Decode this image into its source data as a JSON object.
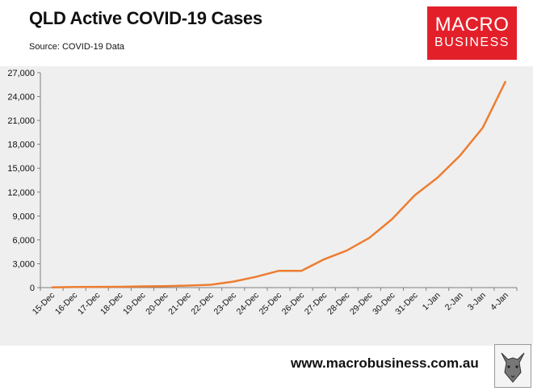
{
  "title": "QLD Active COVID-19 Cases",
  "subtitle": "Source: COVID-19 Data",
  "logo": {
    "line1": "MACRO",
    "line2": "BUSINESS",
    "color": "#e3202a"
  },
  "footer": {
    "url": "www.macrobusiness.com.au",
    "logo_icon": "wolf-icon"
  },
  "colors": {
    "series": "#ed7d31",
    "plot_bg": "#efefef"
  },
  "chart_data": {
    "type": "line",
    "title": "QLD Active COVID-19 Cases",
    "ylim": [
      0,
      27000
    ],
    "y_ticks": [
      0,
      3000,
      6000,
      9000,
      12000,
      15000,
      18000,
      21000,
      24000,
      27000
    ],
    "y_tick_labels": [
      "0",
      "3,000",
      "6,000",
      "9,000",
      "12,000",
      "15,000",
      "18,000",
      "21,000",
      "24,000",
      "27,000"
    ],
    "grid": false,
    "categories": [
      "15-Dec",
      "16-Dec",
      "17-Dec",
      "18-Dec",
      "19-Dec",
      "20-Dec",
      "21-Dec",
      "22-Dec",
      "23-Dec",
      "24-Dec",
      "25-Dec",
      "26-Dec",
      "27-Dec",
      "28-Dec",
      "29-Dec",
      "30-Dec",
      "31-Dec",
      "1-Jan",
      "2-Jan",
      "3-Jan",
      "4-Jan"
    ],
    "series": [
      {
        "values": [
          20,
          80,
          90,
          100,
          150,
          180,
          250,
          350,
          750,
          1350,
          2100,
          2100,
          3550,
          4650,
          6250,
          8600,
          11600,
          13800,
          16600,
          20100,
          25900
        ],
        "color": "#ed7d31"
      }
    ]
  }
}
